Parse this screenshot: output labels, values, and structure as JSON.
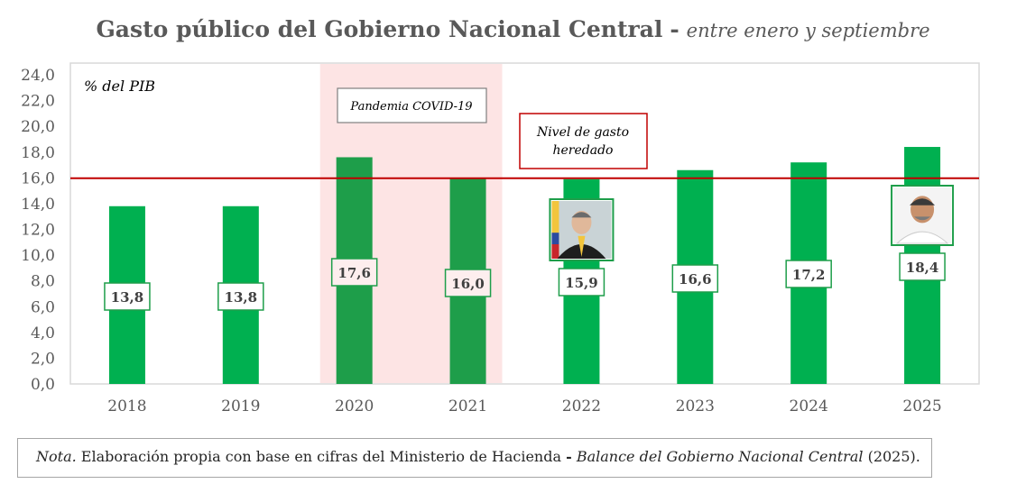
{
  "title": {
    "main": "Gasto público del Gobierno Nacional Central",
    "separator": "-",
    "subtitle": "entre enero y septiembre"
  },
  "chart_data": {
    "type": "bar",
    "categories": [
      "2018",
      "2019",
      "2020",
      "2021",
      "2022",
      "2023",
      "2024",
      "2025"
    ],
    "values": [
      13.8,
      13.8,
      17.6,
      16.0,
      15.9,
      16.6,
      17.2,
      18.4
    ],
    "data_labels": [
      "13,8",
      "13,8",
      "17,6",
      "16,0",
      "15,9",
      "16,6",
      "17,2",
      "18,4"
    ],
    "ylabel": "% del PIB",
    "ylim": [
      0,
      24
    ],
    "yticks": [
      "0,0",
      "2,0",
      "4,0",
      "6,0",
      "8,0",
      "10,0",
      "12,0",
      "14,0",
      "16,0",
      "18,0",
      "20,0",
      "22,0",
      "24,0"
    ],
    "grid": false,
    "reference_line": {
      "value": 15.9,
      "color": "#c00000"
    },
    "shaded_region": {
      "categories": [
        "2020",
        "2021"
      ],
      "color": "#fde4e4",
      "label": "Pandemia COVID-19"
    },
    "annotation_reference": "Nivel de gasto heredado",
    "annotation_reference_lines": [
      "Nivel de gasto",
      "heredado"
    ],
    "bar_color": "#00b050",
    "highlight_bar_color": "#1e9e4a",
    "portraits": [
      "2022",
      "2025"
    ]
  },
  "note": {
    "lead": "Nota.",
    "body": " Elaboración propia con base en cifras del Ministerio de Hacienda ",
    "dash": "-",
    "source": "Balance del Gobierno Nacional Central",
    "tail": " (2025)."
  },
  "colors": {
    "title": "#595959",
    "axis_text": "#595959",
    "frame": "#d9d9d9"
  }
}
